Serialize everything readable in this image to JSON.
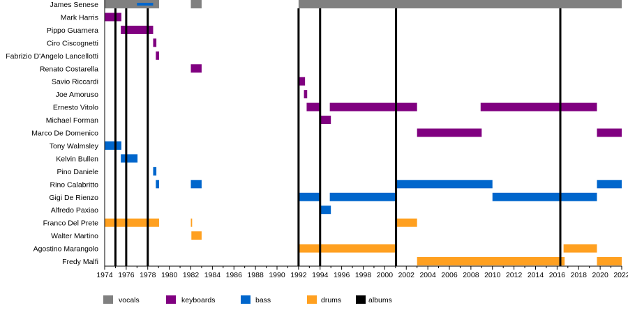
{
  "chart_data": {
    "type": "timeline",
    "xlim": [
      1974,
      2022
    ],
    "x_ticks": [
      "1974",
      "1976",
      "1978",
      "1980",
      "1982",
      "1984",
      "1986",
      "1988",
      "1990",
      "1992",
      "1994",
      "1996",
      "1998",
      "2000",
      "2002",
      "2004",
      "2006",
      "2008",
      "2010",
      "2012",
      "2014",
      "2016",
      "2018",
      "2020",
      "2022"
    ],
    "legend": [
      {
        "key": "vocals",
        "label": "vocals",
        "color": "#808080"
      },
      {
        "key": "keyboards",
        "label": "keyboards",
        "color": "#800080"
      },
      {
        "key": "bass",
        "label": "bass",
        "color": "#0066CC"
      },
      {
        "key": "drums",
        "label": "drums",
        "color": "#FFA020"
      },
      {
        "key": "albums",
        "label": "albums",
        "color": "#000000"
      }
    ],
    "legend_position": "bottom",
    "albums": [
      1975.0,
      1976.0,
      1978.0,
      1992.0,
      1994.0,
      2001.05,
      2016.3
    ],
    "members": [
      {
        "name": "James Senese",
        "periods": [
          {
            "role": "vocals",
            "start": 1974,
            "end": 1979.05
          },
          {
            "role": "vocals",
            "start": 1982,
            "end": 1983
          },
          {
            "role": "vocals",
            "start": 1992,
            "end": 2022
          },
          {
            "role": "bass",
            "start": 1977,
            "end": 1978.5,
            "thin": true
          }
        ]
      },
      {
        "name": "Mark Harris",
        "periods": [
          {
            "role": "keyboards",
            "start": 1974,
            "end": 1975.55
          }
        ]
      },
      {
        "name": "Pippo Guarnera",
        "periods": [
          {
            "role": "keyboards",
            "start": 1975.5,
            "end": 1978.5
          }
        ]
      },
      {
        "name": "Ciro Ciscognetti",
        "periods": [
          {
            "role": "keyboards",
            "start": 1978.5,
            "end": 1978.8
          }
        ]
      },
      {
        "name": "Fabrizio D'Angelo Lancellotti",
        "periods": [
          {
            "role": "keyboards",
            "start": 1978.75,
            "end": 1979.05
          }
        ]
      },
      {
        "name": "Renato Costarella",
        "periods": [
          {
            "role": "keyboards",
            "start": 1982,
            "end": 1983
          }
        ]
      },
      {
        "name": "Savio Riccardi",
        "periods": [
          {
            "role": "keyboards",
            "start": 1992,
            "end": 1992.6
          }
        ]
      },
      {
        "name": "Joe Amoruso",
        "periods": [
          {
            "role": "keyboards",
            "start": 1992.5,
            "end": 1992.8
          }
        ]
      },
      {
        "name": "Ernesto Vitolo",
        "periods": [
          {
            "role": "keyboards",
            "start": 1992.75,
            "end": 1994
          },
          {
            "role": "keyboards",
            "start": 1994.9,
            "end": 2003
          },
          {
            "role": "keyboards",
            "start": 2008.9,
            "end": 2019.7
          }
        ]
      },
      {
        "name": "Michael Forman",
        "periods": [
          {
            "role": "keyboards",
            "start": 1994,
            "end": 1995
          }
        ]
      },
      {
        "name": "Marco De Domenico",
        "periods": [
          {
            "role": "keyboards",
            "start": 2003,
            "end": 2009
          },
          {
            "role": "keyboards",
            "start": 2019.7,
            "end": 2022
          }
        ]
      },
      {
        "name": "Tony Walmsley",
        "periods": [
          {
            "role": "bass",
            "start": 1974,
            "end": 1975.55
          }
        ]
      },
      {
        "name": "Kelvin Bullen",
        "periods": [
          {
            "role": "bass",
            "start": 1975.5,
            "end": 1977.05
          }
        ]
      },
      {
        "name": "Pino Daniele",
        "periods": [
          {
            "role": "bass",
            "start": 1978.5,
            "end": 1978.8
          }
        ]
      },
      {
        "name": "Rino Calabritto",
        "periods": [
          {
            "role": "bass",
            "start": 1978.75,
            "end": 1979.05
          },
          {
            "role": "bass",
            "start": 1982,
            "end": 1983
          },
          {
            "role": "bass",
            "start": 2001,
            "end": 2010
          },
          {
            "role": "bass",
            "start": 2019.7,
            "end": 2022
          }
        ]
      },
      {
        "name": "Gigi De Rienzo",
        "periods": [
          {
            "role": "bass",
            "start": 1992,
            "end": 1994.05
          },
          {
            "role": "bass",
            "start": 1994.9,
            "end": 2001.1
          },
          {
            "role": "bass",
            "start": 2010,
            "end": 2019.7
          }
        ]
      },
      {
        "name": "Alfredo Paxiao",
        "periods": [
          {
            "role": "bass",
            "start": 1994,
            "end": 1995
          }
        ]
      },
      {
        "name": "Franco Del Prete",
        "periods": [
          {
            "role": "drums",
            "start": 1974,
            "end": 1979.05
          },
          {
            "role": "drums",
            "start": 1982,
            "end": 1982.12
          },
          {
            "role": "drums",
            "start": 2001,
            "end": 2003
          }
        ]
      },
      {
        "name": "Walter Martino",
        "periods": [
          {
            "role": "drums",
            "start": 1982.05,
            "end": 1983
          }
        ]
      },
      {
        "name": "Agostino Marangolo",
        "periods": [
          {
            "role": "drums",
            "start": 1992,
            "end": 2001
          },
          {
            "role": "drums",
            "start": 2016.6,
            "end": 2019.7
          }
        ]
      },
      {
        "name": "Fredy Malfi",
        "periods": [
          {
            "role": "drums",
            "start": 2003,
            "end": 2016.7
          },
          {
            "role": "drums",
            "start": 2019.7,
            "end": 2022
          }
        ]
      }
    ]
  }
}
